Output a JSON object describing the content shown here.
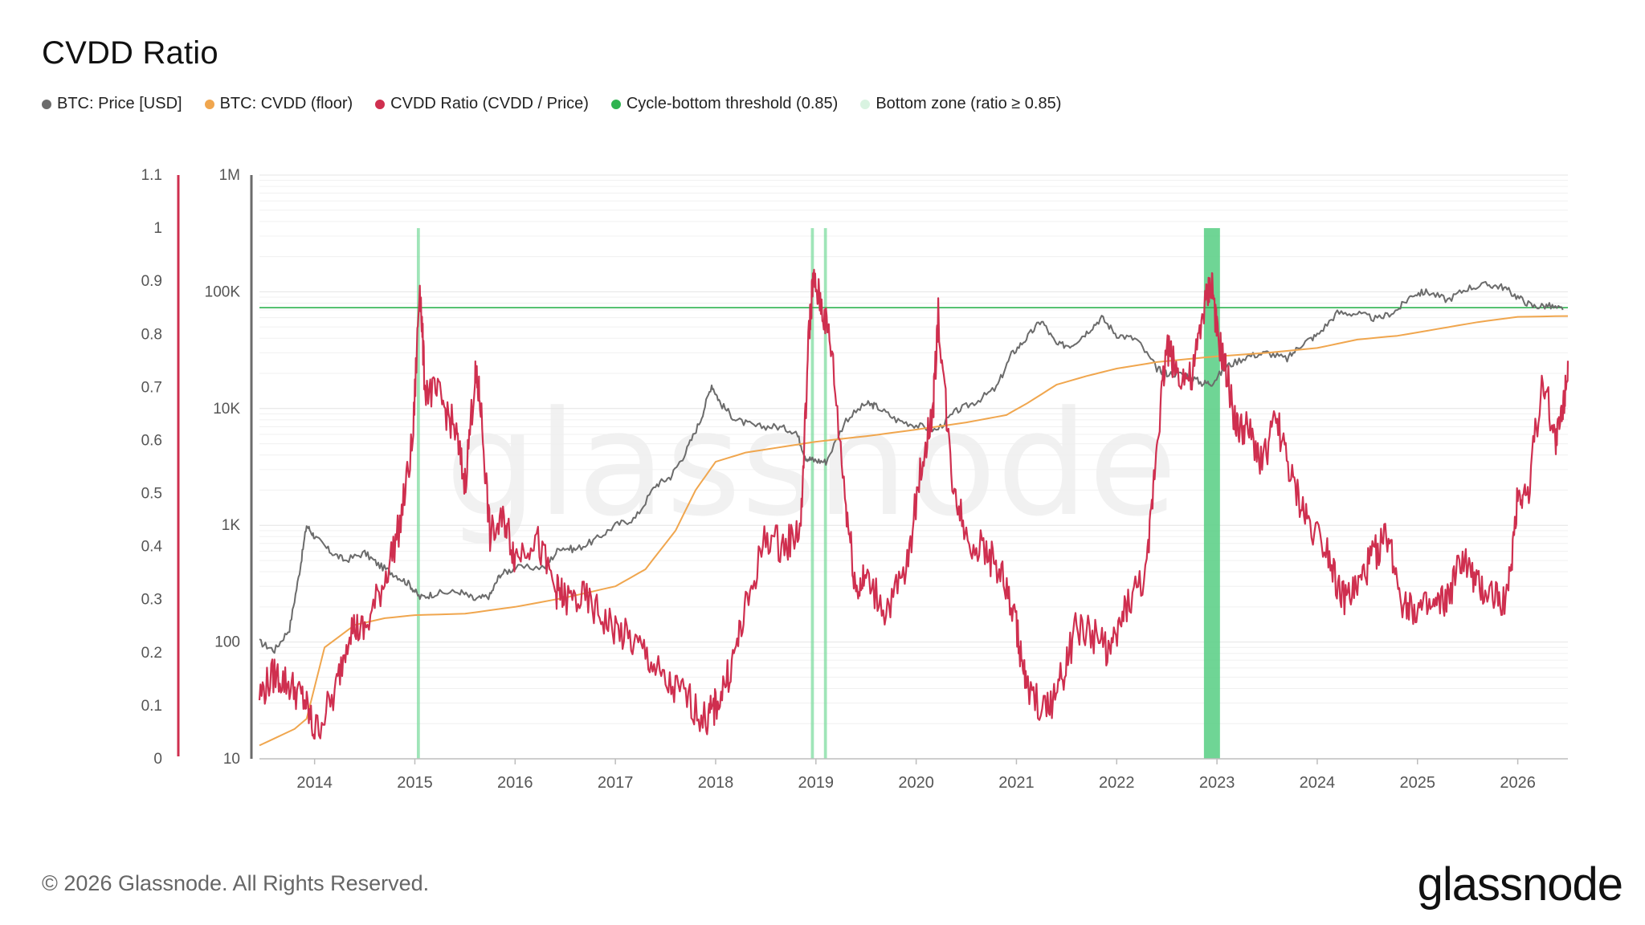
{
  "title": "CVDD Ratio",
  "footer": "© 2026 Glassnode. All Rights Reserved.",
  "brand": "glassnode",
  "watermark": "glassnode",
  "legend": [
    {
      "label": "BTC: Price [USD]",
      "color": "#6b6b6b"
    },
    {
      "label": "BTC: CVDD (floor)",
      "color": "#f0a64e"
    },
    {
      "label": "CVDD Ratio (CVDD / Price)",
      "color": "#cf2f4f"
    },
    {
      "label": "Cycle-bottom threshold (0.85)",
      "color": "#2fb350"
    },
    {
      "label": "Bottom zone (ratio ≥ 0.85)",
      "color": "#d9f3e1"
    }
  ],
  "chart_data": {
    "type": "line",
    "x_range": [
      2013.45,
      2026.5
    ],
    "x_ticks": [
      "2014",
      "2015",
      "2016",
      "2017",
      "2018",
      "2019",
      "2020",
      "2021",
      "2022",
      "2023",
      "2024",
      "2025",
      "2026"
    ],
    "left_axis_ratio": {
      "ticks": [
        "0",
        "0.1",
        "0.2",
        "0.3",
        "0.4",
        "0.5",
        "0.6",
        "0.7",
        "0.8",
        "0.9",
        "1",
        "1.1"
      ],
      "range": [
        0,
        1.1
      ]
    },
    "left_axis_price": {
      "scale": "log",
      "ticks": [
        "10",
        "100",
        "1K",
        "10K",
        "100K",
        "1M"
      ],
      "range": [
        10,
        1000000
      ]
    },
    "threshold": 0.85,
    "series": [
      {
        "name": "BTC: Price [USD]",
        "axis": "price",
        "color": "#6b6b6b",
        "x": [
          2013.45,
          2013.6,
          2013.75,
          2013.85,
          2013.92,
          2014.0,
          2014.15,
          2014.3,
          2014.5,
          2014.65,
          2014.8,
          2014.95,
          2015.05,
          2015.2,
          2015.45,
          2015.6,
          2015.75,
          2015.85,
          2016.0,
          2016.3,
          2016.45,
          2016.6,
          2016.8,
          2017.0,
          2017.2,
          2017.4,
          2017.55,
          2017.7,
          2017.85,
          2017.96,
          2018.05,
          2018.2,
          2018.4,
          2018.6,
          2018.8,
          2018.9,
          2018.98,
          2019.1,
          2019.3,
          2019.5,
          2019.6,
          2019.8,
          2020.0,
          2020.2,
          2020.4,
          2020.6,
          2020.8,
          2020.95,
          2021.1,
          2021.25,
          2021.4,
          2021.55,
          2021.7,
          2021.85,
          2022.0,
          2022.2,
          2022.4,
          2022.5,
          2022.7,
          2022.85,
          2022.95,
          2023.1,
          2023.3,
          2023.5,
          2023.7,
          2023.85,
          2024.0,
          2024.2,
          2024.4,
          2024.6,
          2024.8,
          2024.95,
          2025.1,
          2025.3,
          2025.5,
          2025.7,
          2025.85,
          2026.0,
          2026.15,
          2026.3,
          2026.45
        ],
        "values": [
          100,
          85,
          130,
          400,
          1000,
          800,
          600,
          500,
          580,
          450,
          380,
          310,
          240,
          260,
          270,
          230,
          250,
          380,
          430,
          440,
          650,
          620,
          750,
          1000,
          1150,
          2200,
          2600,
          4200,
          8000,
          16000,
          11000,
          8000,
          7000,
          7000,
          6400,
          3800,
          3600,
          3500,
          8000,
          11000,
          10500,
          8000,
          7200,
          6500,
          9500,
          11500,
          15000,
          29000,
          40000,
          57000,
          35000,
          35000,
          45000,
          60000,
          43000,
          39000,
          22000,
          20000,
          19500,
          16500,
          16600,
          23000,
          28000,
          30000,
          26500,
          36000,
          42500,
          66000,
          65000,
          58000,
          70000,
          95000,
          100000,
          85000,
          108000,
          115000,
          110000,
          90000,
          75000,
          76000,
          70000
        ]
      },
      {
        "name": "BTC: CVDD (floor)",
        "axis": "price",
        "color": "#f0a64e",
        "x": [
          2013.45,
          2013.8,
          2013.92,
          2014.1,
          2014.4,
          2014.7,
          2015.0,
          2015.5,
          2016.0,
          2016.5,
          2017.0,
          2017.3,
          2017.6,
          2017.8,
          2018.0,
          2018.3,
          2018.6,
          2019.0,
          2019.5,
          2020.0,
          2020.5,
          2020.9,
          2021.1,
          2021.4,
          2021.7,
          2022.0,
          2022.4,
          2022.8,
          2023.0,
          2023.5,
          2024.0,
          2024.4,
          2024.8,
          2025.2,
          2025.6,
          2026.0,
          2026.5
        ],
        "values": [
          13,
          18,
          22,
          90,
          140,
          160,
          170,
          175,
          200,
          240,
          300,
          420,
          900,
          2000,
          3500,
          4200,
          4600,
          5200,
          5800,
          6600,
          7600,
          8800,
          11000,
          16000,
          19000,
          22000,
          25000,
          27000,
          28000,
          30000,
          33000,
          39000,
          42000,
          48000,
          55000,
          61000,
          62000
        ]
      },
      {
        "name": "CVDD Ratio (CVDD / Price)",
        "axis": "ratio",
        "color": "#cf2f4f",
        "x": [
          2013.45,
          2013.6,
          2013.75,
          2013.9,
          2014.0,
          2014.2,
          2014.35,
          2014.5,
          2014.7,
          2014.85,
          2014.98,
          2015.05,
          2015.1,
          2015.25,
          2015.4,
          2015.5,
          2015.6,
          2015.65,
          2015.75,
          2015.9,
          2016.0,
          2016.2,
          2016.4,
          2016.5,
          2016.7,
          2016.9,
          2017.1,
          2017.3,
          2017.5,
          2017.7,
          2017.9,
          2018.0,
          2018.15,
          2018.3,
          2018.5,
          2018.7,
          2018.85,
          2018.93,
          2018.97,
          2019.05,
          2019.15,
          2019.3,
          2019.4,
          2019.5,
          2019.7,
          2019.9,
          2020.05,
          2020.17,
          2020.22,
          2020.35,
          2020.5,
          2020.7,
          2020.85,
          2021.0,
          2021.1,
          2021.3,
          2021.45,
          2021.6,
          2021.8,
          2021.95,
          2022.1,
          2022.3,
          2022.4,
          2022.5,
          2022.6,
          2022.75,
          2022.87,
          2022.95,
          2023.0,
          2023.1,
          2023.2,
          2023.3,
          2023.45,
          2023.6,
          2023.75,
          2023.9,
          2024.1,
          2024.25,
          2024.4,
          2024.55,
          2024.7,
          2024.85,
          2025.0,
          2025.15,
          2025.3,
          2025.45,
          2025.6,
          2025.75,
          2025.9,
          2026.0,
          2026.1,
          2026.25,
          2026.38,
          2026.45,
          2026.5
        ],
        "values": [
          0.12,
          0.16,
          0.14,
          0.11,
          0.05,
          0.12,
          0.25,
          0.24,
          0.34,
          0.44,
          0.6,
          0.9,
          0.7,
          0.68,
          0.62,
          0.52,
          0.72,
          0.68,
          0.42,
          0.45,
          0.38,
          0.42,
          0.32,
          0.3,
          0.3,
          0.26,
          0.23,
          0.2,
          0.14,
          0.12,
          0.07,
          0.1,
          0.17,
          0.28,
          0.42,
          0.4,
          0.44,
          0.8,
          0.9,
          0.86,
          0.78,
          0.48,
          0.32,
          0.34,
          0.28,
          0.35,
          0.55,
          0.66,
          0.84,
          0.54,
          0.42,
          0.39,
          0.35,
          0.25,
          0.13,
          0.09,
          0.15,
          0.25,
          0.23,
          0.2,
          0.29,
          0.35,
          0.6,
          0.78,
          0.73,
          0.71,
          0.85,
          0.9,
          0.8,
          0.72,
          0.62,
          0.62,
          0.56,
          0.64,
          0.52,
          0.45,
          0.4,
          0.3,
          0.32,
          0.38,
          0.42,
          0.3,
          0.28,
          0.28,
          0.3,
          0.38,
          0.32,
          0.31,
          0.3,
          0.5,
          0.5,
          0.72,
          0.6,
          0.66,
          0.75
        ]
      }
    ],
    "bottom_zones": [
      [
        2015.02,
        2015.05
      ],
      [
        2018.95,
        2018.98
      ],
      [
        2019.08,
        2019.11
      ],
      [
        2022.87,
        2023.03
      ]
    ]
  }
}
